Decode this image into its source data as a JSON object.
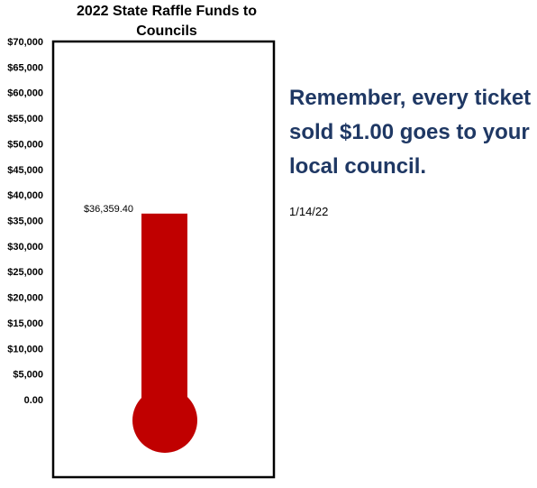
{
  "chart_data": {
    "type": "thermometer",
    "title": "2022 State Raffle Funds to Councils",
    "value": 36359.4,
    "value_label": "$36,359.40",
    "ylim": [
      0,
      70000
    ],
    "y_ticks": [
      {
        "value": 70000,
        "label": "$70,000"
      },
      {
        "value": 65000,
        "label": "$65,000"
      },
      {
        "value": 60000,
        "label": "$60,000"
      },
      {
        "value": 55000,
        "label": "$55,000"
      },
      {
        "value": 50000,
        "label": "$50,000"
      },
      {
        "value": 45000,
        "label": "$45,000"
      },
      {
        "value": 40000,
        "label": "$40,000"
      },
      {
        "value": 35000,
        "label": "$35,000"
      },
      {
        "value": 30000,
        "label": "$30,000"
      },
      {
        "value": 25000,
        "label": "$25,000"
      },
      {
        "value": 20000,
        "label": "$20,000"
      },
      {
        "value": 15000,
        "label": "$15,000"
      },
      {
        "value": 10000,
        "label": "$10,000"
      },
      {
        "value": 5000,
        "label": "$5,000"
      },
      {
        "value": 0,
        "label": "0.00"
      }
    ],
    "color": "#c00000"
  },
  "message": "Remember, every ticket sold $1.00 goes to your local council.",
  "date": "1/14/22"
}
